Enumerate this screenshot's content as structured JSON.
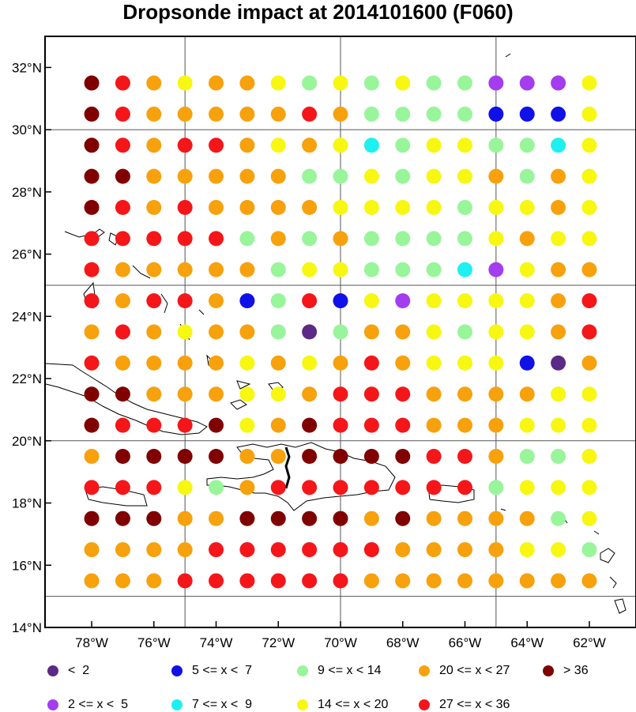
{
  "title": "Dropsonde impact at 2014101600 (F060)",
  "colors": {
    "c1": "#5b2a86",
    "c2": "#a43cf0",
    "c3": "#1010e8",
    "c4": "#1ef0f0",
    "c5": "#98f59a",
    "c6": "#f7f711",
    "c7": "#f7a10d",
    "c8": "#f5161a",
    "c9": "#800000"
  },
  "legend": [
    {
      "code": "1",
      "label": "<  2"
    },
    {
      "code": "2",
      "label": "2 <= x <  5"
    },
    {
      "code": "3",
      "label": "5 <= x <  7"
    },
    {
      "code": "4",
      "label": "7 <= x <  9"
    },
    {
      "code": "5",
      "label": "9 <= x < 14"
    },
    {
      "code": "6",
      "label": "14 <= x < 20"
    },
    {
      "code": "7",
      "label": "20 <= x < 27"
    },
    {
      "code": "8",
      "label": "27 <= x < 36"
    },
    {
      "code": "9",
      "label": "> 36"
    }
  ],
  "axes": {
    "x_ticks": [
      "78°W",
      "76°W",
      "74°W",
      "72°W",
      "70°W",
      "68°W",
      "66°W",
      "64°W",
      "62°W"
    ],
    "y_ticks": [
      "14°N",
      "16°N",
      "18°N",
      "20°N",
      "22°N",
      "24°N",
      "26°N",
      "28°N",
      "30°N",
      "32°N"
    ],
    "lon_range": [
      -79.5,
      -60.5
    ],
    "lat_range": [
      14,
      33
    ],
    "gridlines_lon": [
      -75,
      -70,
      -65
    ],
    "gridlines_lat": [
      15,
      20,
      25,
      30
    ]
  },
  "chart_data": {
    "type": "scatter",
    "title": "Dropsonde impact at 2014101600 (F060)",
    "lons": [
      -78,
      -77,
      -76,
      -75,
      -74,
      -73,
      -72,
      -71,
      -70,
      -69,
      -68,
      -67,
      -66,
      -65,
      -64,
      -63,
      -62
    ],
    "lats": [
      31.5,
      30.5,
      29.5,
      28.5,
      27.5,
      26.5,
      25.5,
      24.5,
      23.5,
      22.5,
      21.5,
      20.5,
      19.5,
      18.5,
      17.5,
      16.5,
      15.5
    ],
    "category_rows": [
      "98767765656552226",
      "98777778755553336",
      "98788767645665546",
      "99777775565667576",
      "98787777666656676",
      "88888575755556766",
      "87777756655542677",
      "87887358362666678",
      "78767751577656678",
      "87777676787666317",
      "99777667888777766",
      "98889679888777666",
      "79999779999887556",
      "88865788888885666",
      "99977999979777756",
      "77778888887777665",
      "77788888877777777"
    ]
  }
}
